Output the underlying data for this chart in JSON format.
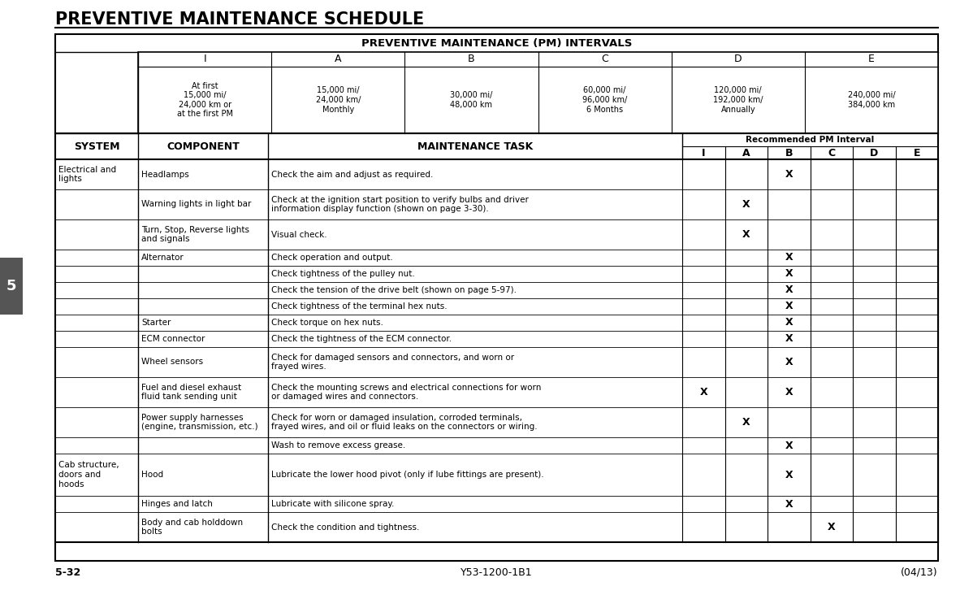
{
  "title": "PREVENTIVE MAINTENANCE SCHEDULE",
  "table_header": "PREVENTIVE MAINTENANCE (PM) INTERVALS",
  "interval_descriptions": [
    "At first\n15,000 mi/\n24,000 km or\nat the first PM",
    "15,000 mi/\n24,000 km/\nMonthly",
    "30,000 mi/\n48,000 km",
    "60,000 mi/\n96,000 km/\n6 Months",
    "120,000 mi/\n192,000 km/\nAnnually",
    "240,000 mi/\n384,000 km"
  ],
  "footer_left": "5-32",
  "footer_center": "Y53-1200-1B1",
  "footer_right": "(04/13)",
  "rows": [
    {
      "system": "Electrical and\nlights",
      "component": "Headlamps",
      "task": "Check the aim and adjust as required.",
      "I": "",
      "A": "",
      "B": "X",
      "C": "",
      "D": "",
      "E": ""
    },
    {
      "system": "",
      "component": "Warning lights in light bar",
      "task": "Check at the ignition start position to verify bulbs and driver\ninformation display function (shown on page 3-30).",
      "I": "",
      "A": "X",
      "B": "",
      "C": "",
      "D": "",
      "E": ""
    },
    {
      "system": "",
      "component": "Turn, Stop, Reverse lights\nand signals",
      "task": "Visual check.",
      "I": "",
      "A": "X",
      "B": "",
      "C": "",
      "D": "",
      "E": ""
    },
    {
      "system": "",
      "component": "Alternator",
      "task": "Check operation and output.",
      "I": "",
      "A": "",
      "B": "X",
      "C": "",
      "D": "",
      "E": ""
    },
    {
      "system": "",
      "component": "",
      "task": "Check tightness of the pulley nut.",
      "I": "",
      "A": "",
      "B": "X",
      "C": "",
      "D": "",
      "E": ""
    },
    {
      "system": "",
      "component": "",
      "task": "Check the tension of the drive belt (shown on page 5-97).",
      "I": "",
      "A": "",
      "B": "X",
      "C": "",
      "D": "",
      "E": ""
    },
    {
      "system": "",
      "component": "",
      "task": "Check tightness of the terminal hex nuts.",
      "I": "",
      "A": "",
      "B": "X",
      "C": "",
      "D": "",
      "E": ""
    },
    {
      "system": "",
      "component": "Starter",
      "task": "Check torque on hex nuts.",
      "I": "",
      "A": "",
      "B": "X",
      "C": "",
      "D": "",
      "E": ""
    },
    {
      "system": "",
      "component": "ECM connector",
      "task": "Check the tightness of the ECM connector.",
      "I": "",
      "A": "",
      "B": "X",
      "C": "",
      "D": "",
      "E": ""
    },
    {
      "system": "",
      "component": "Wheel sensors",
      "task": "Check for damaged sensors and connectors, and worn or\nfrayed wires.",
      "I": "",
      "A": "",
      "B": "X",
      "C": "",
      "D": "",
      "E": ""
    },
    {
      "system": "",
      "component": "Fuel and diesel exhaust\nfluid tank sending unit",
      "task": "Check the mounting screws and electrical connections for worn\nor damaged wires and connectors.",
      "I": "X",
      "A": "",
      "B": "X",
      "C": "",
      "D": "",
      "E": ""
    },
    {
      "system": "",
      "component": "Power supply harnesses\n(engine, transmission, etc.)",
      "task": "Check for worn or damaged insulation, corroded terminals,\nfrayed wires, and oil or fluid leaks on the connectors or wiring.",
      "I": "",
      "A": "X",
      "B": "",
      "C": "",
      "D": "",
      "E": ""
    },
    {
      "system": "",
      "component": "",
      "task": "Wash to remove excess grease.",
      "I": "",
      "A": "",
      "B": "X",
      "C": "",
      "D": "",
      "E": ""
    },
    {
      "system": "Cab structure,\ndoors and\nhoods",
      "component": "Hood",
      "task": "Lubricate the lower hood pivot (only if lube fittings are present).",
      "I": "",
      "A": "",
      "B": "X",
      "C": "",
      "D": "",
      "E": ""
    },
    {
      "system": "",
      "component": "Hinges and latch",
      "task": "Lubricate with silicone spray.",
      "I": "",
      "A": "",
      "B": "X",
      "C": "",
      "D": "",
      "E": ""
    },
    {
      "system": "",
      "component": "Body and cab holddown\nbolts",
      "task": "Check the condition and tightness.",
      "I": "",
      "A": "",
      "B": "",
      "C": "X",
      "D": "",
      "E": ""
    }
  ],
  "page_tab": "5",
  "background_color": "#ffffff",
  "tab_bg": "#555555",
  "tab_text_color": "#ffffff"
}
